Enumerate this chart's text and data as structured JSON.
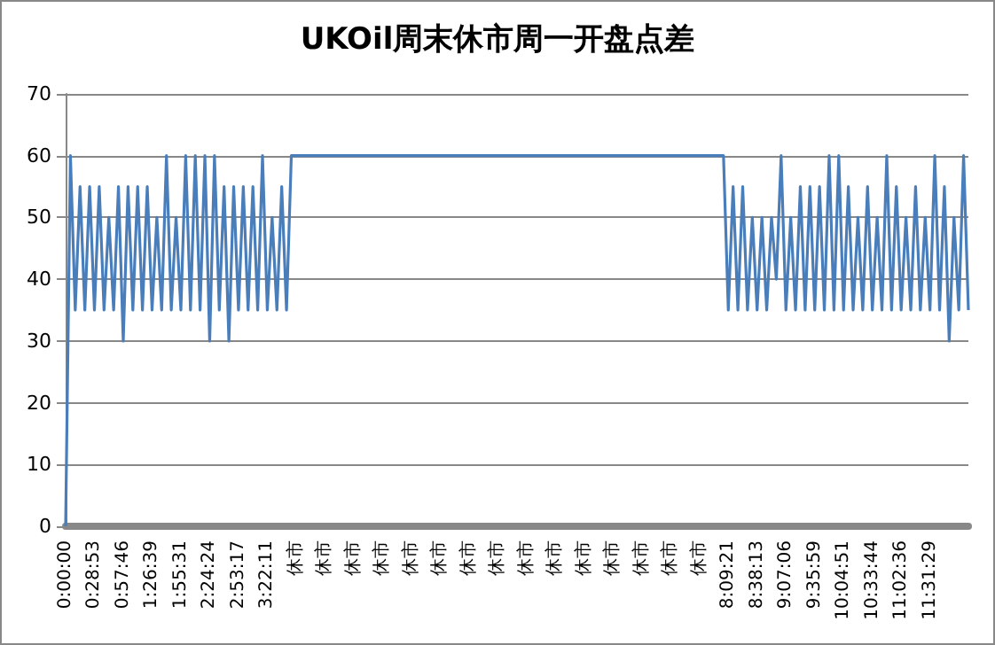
{
  "chart_data": {
    "type": "line",
    "title": "UKOil周末休市周一开盘点差",
    "categories": [
      "0:00:00",
      null,
      null,
      null,
      null,
      null,
      "0:28:53",
      null,
      null,
      null,
      null,
      null,
      "0:57:46",
      null,
      null,
      null,
      null,
      null,
      "1:26:39",
      null,
      null,
      null,
      null,
      null,
      "1:55:31",
      null,
      null,
      null,
      null,
      null,
      "2:24:24",
      null,
      null,
      null,
      null,
      null,
      "2:53:17",
      null,
      null,
      null,
      null,
      null,
      "3:22:11",
      null,
      null,
      null,
      null,
      null,
      "休市",
      null,
      null,
      null,
      null,
      null,
      "休市",
      null,
      null,
      null,
      null,
      null,
      "休市",
      null,
      null,
      null,
      null,
      null,
      "休市",
      null,
      null,
      null,
      null,
      null,
      "休市",
      null,
      null,
      null,
      null,
      null,
      "休市",
      null,
      null,
      null,
      null,
      null,
      "休市",
      null,
      null,
      null,
      null,
      null,
      "休市",
      null,
      null,
      null,
      null,
      null,
      "休市",
      null,
      null,
      null,
      null,
      null,
      "休市",
      null,
      null,
      null,
      null,
      null,
      "休市",
      null,
      null,
      null,
      null,
      null,
      "休市",
      null,
      null,
      null,
      null,
      null,
      "休市",
      null,
      null,
      null,
      null,
      null,
      "休市",
      null,
      null,
      null,
      null,
      null,
      "休市",
      null,
      null,
      null,
      null,
      null,
      "8:09:21",
      null,
      null,
      null,
      null,
      null,
      "8:38:13",
      null,
      null,
      null,
      null,
      null,
      "9:07:06",
      null,
      null,
      null,
      null,
      null,
      "9:35:59",
      null,
      null,
      null,
      null,
      null,
      "10:04:51",
      null,
      null,
      null,
      null,
      null,
      "10:33:44",
      null,
      null,
      null,
      null,
      null,
      "11:02:36",
      null,
      null,
      null,
      null,
      null,
      "11:31:29",
      null,
      null,
      null,
      null,
      null,
      null,
      null,
      null
    ],
    "series": [
      {
        "color": "#4a7ebb",
        "values": [
          0,
          60,
          35,
          55,
          35,
          55,
          35,
          55,
          35,
          50,
          35,
          55,
          30,
          55,
          35,
          55,
          35,
          55,
          35,
          50,
          35,
          60,
          35,
          50,
          35,
          60,
          35,
          60,
          35,
          60,
          30,
          60,
          35,
          55,
          30,
          55,
          35,
          55,
          35,
          55,
          35,
          60,
          35,
          50,
          35,
          55,
          35,
          60,
          60,
          60,
          60,
          60,
          60,
          60,
          60,
          60,
          60,
          60,
          60,
          60,
          60,
          60,
          60,
          60,
          60,
          60,
          60,
          60,
          60,
          60,
          60,
          60,
          60,
          60,
          60,
          60,
          60,
          60,
          60,
          60,
          60,
          60,
          60,
          60,
          60,
          60,
          60,
          60,
          60,
          60,
          60,
          60,
          60,
          60,
          60,
          60,
          60,
          60,
          60,
          60,
          60,
          60,
          60,
          60,
          60,
          60,
          60,
          60,
          60,
          60,
          60,
          60,
          60,
          60,
          60,
          60,
          60,
          60,
          60,
          60,
          60,
          60,
          60,
          60,
          60,
          60,
          60,
          60,
          60,
          60,
          60,
          60,
          60,
          60,
          60,
          60,
          60,
          60,
          35,
          55,
          35,
          55,
          35,
          50,
          35,
          50,
          35,
          50,
          40,
          60,
          35,
          50,
          35,
          55,
          35,
          55,
          35,
          55,
          35,
          60,
          35,
          60,
          35,
          55,
          35,
          50,
          35,
          55,
          35,
          50,
          35,
          60,
          35,
          55,
          35,
          50,
          35,
          55,
          35,
          50,
          35,
          60,
          35,
          55,
          30,
          50,
          35,
          60,
          35
        ]
      }
    ],
    "ylim": [
      0,
      70
    ],
    "yticks": [
      0,
      10,
      20,
      30,
      40,
      50,
      60,
      70
    ],
    "grid": "y",
    "marker": "none",
    "line_style": "solid"
  }
}
